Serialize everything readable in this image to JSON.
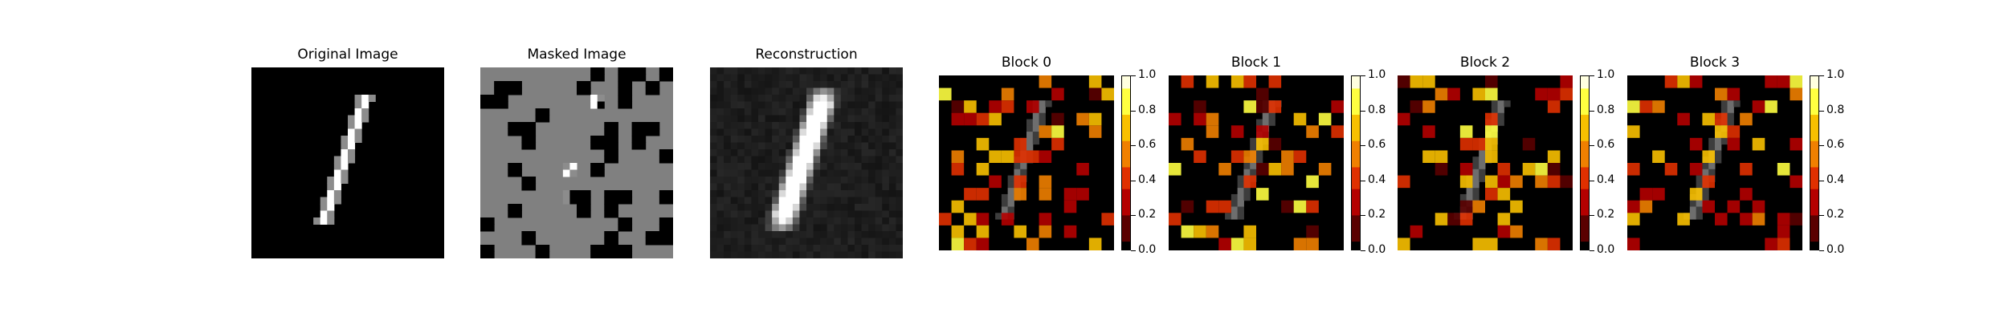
{
  "titles": {
    "original": "Original Image",
    "masked": "Masked Image",
    "reconstruction": "Reconstruction",
    "block0": "Block 0",
    "block1": "Block 1",
    "block2": "Block 2",
    "block3": "Block 3"
  },
  "colorbar_ticks": [
    "0.0",
    "0.2",
    "0.4",
    "0.6",
    "0.8",
    "1.0"
  ],
  "colors": {
    "background": "#000000",
    "masked_gray": "#808080",
    "colormap": [
      "#000000",
      "#5a0000",
      "#b40000",
      "#e03000",
      "#f08000",
      "#f8c000",
      "#ffff40",
      "#ffffe0"
    ]
  }
}
